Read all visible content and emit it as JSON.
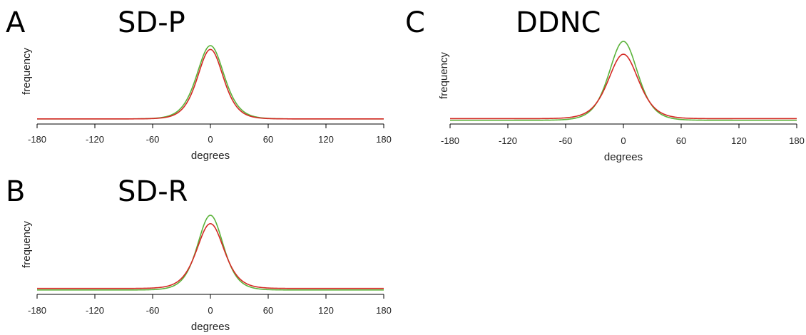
{
  "colors": {
    "green_series": "#5bb33a",
    "red_series": "#d42a25",
    "axis": "#000000"
  },
  "chart_data": [
    {
      "type": "line",
      "panel": "A",
      "title": "SD-P",
      "xlabel": "degrees",
      "ylabel": "frequency",
      "xlim": [
        -180,
        180
      ],
      "xticks": [
        -180,
        -120,
        -60,
        0,
        60,
        120,
        180
      ],
      "y_axis_ticks": false,
      "series": [
        {
          "color": "#5bb33a",
          "peak": 1.0,
          "baseline": 0.03,
          "width": 19.0
        },
        {
          "color": "#d42a25",
          "peak": 0.95,
          "baseline": 0.03,
          "width": 18.0
        }
      ]
    },
    {
      "type": "line",
      "panel": "B",
      "title": "SD-R",
      "xlabel": "degrees",
      "ylabel": "frequency",
      "xlim": [
        -180,
        180
      ],
      "xticks": [
        -180,
        -120,
        -60,
        0,
        60,
        120,
        180
      ],
      "y_axis_ticks": false,
      "series": [
        {
          "color": "#5bb33a",
          "peak": 1.0,
          "baseline": 0.02,
          "width": 18.0
        },
        {
          "color": "#d42a25",
          "peak": 0.89,
          "baseline": 0.04,
          "width": 19.0
        }
      ]
    },
    {
      "type": "line",
      "panel": "C",
      "title": "DDNC",
      "xlabel": "degrees",
      "ylabel": "frequency",
      "xlim": [
        -180,
        180
      ],
      "xticks": [
        -180,
        -120,
        -60,
        0,
        60,
        120,
        180
      ],
      "y_axis_ticks": false,
      "series": [
        {
          "color": "#5bb33a",
          "peak": 1.0,
          "baseline": 0.02,
          "width": 20.0
        },
        {
          "color": "#d42a25",
          "peak": 0.84,
          "baseline": 0.04,
          "width": 21.0
        }
      ]
    }
  ]
}
